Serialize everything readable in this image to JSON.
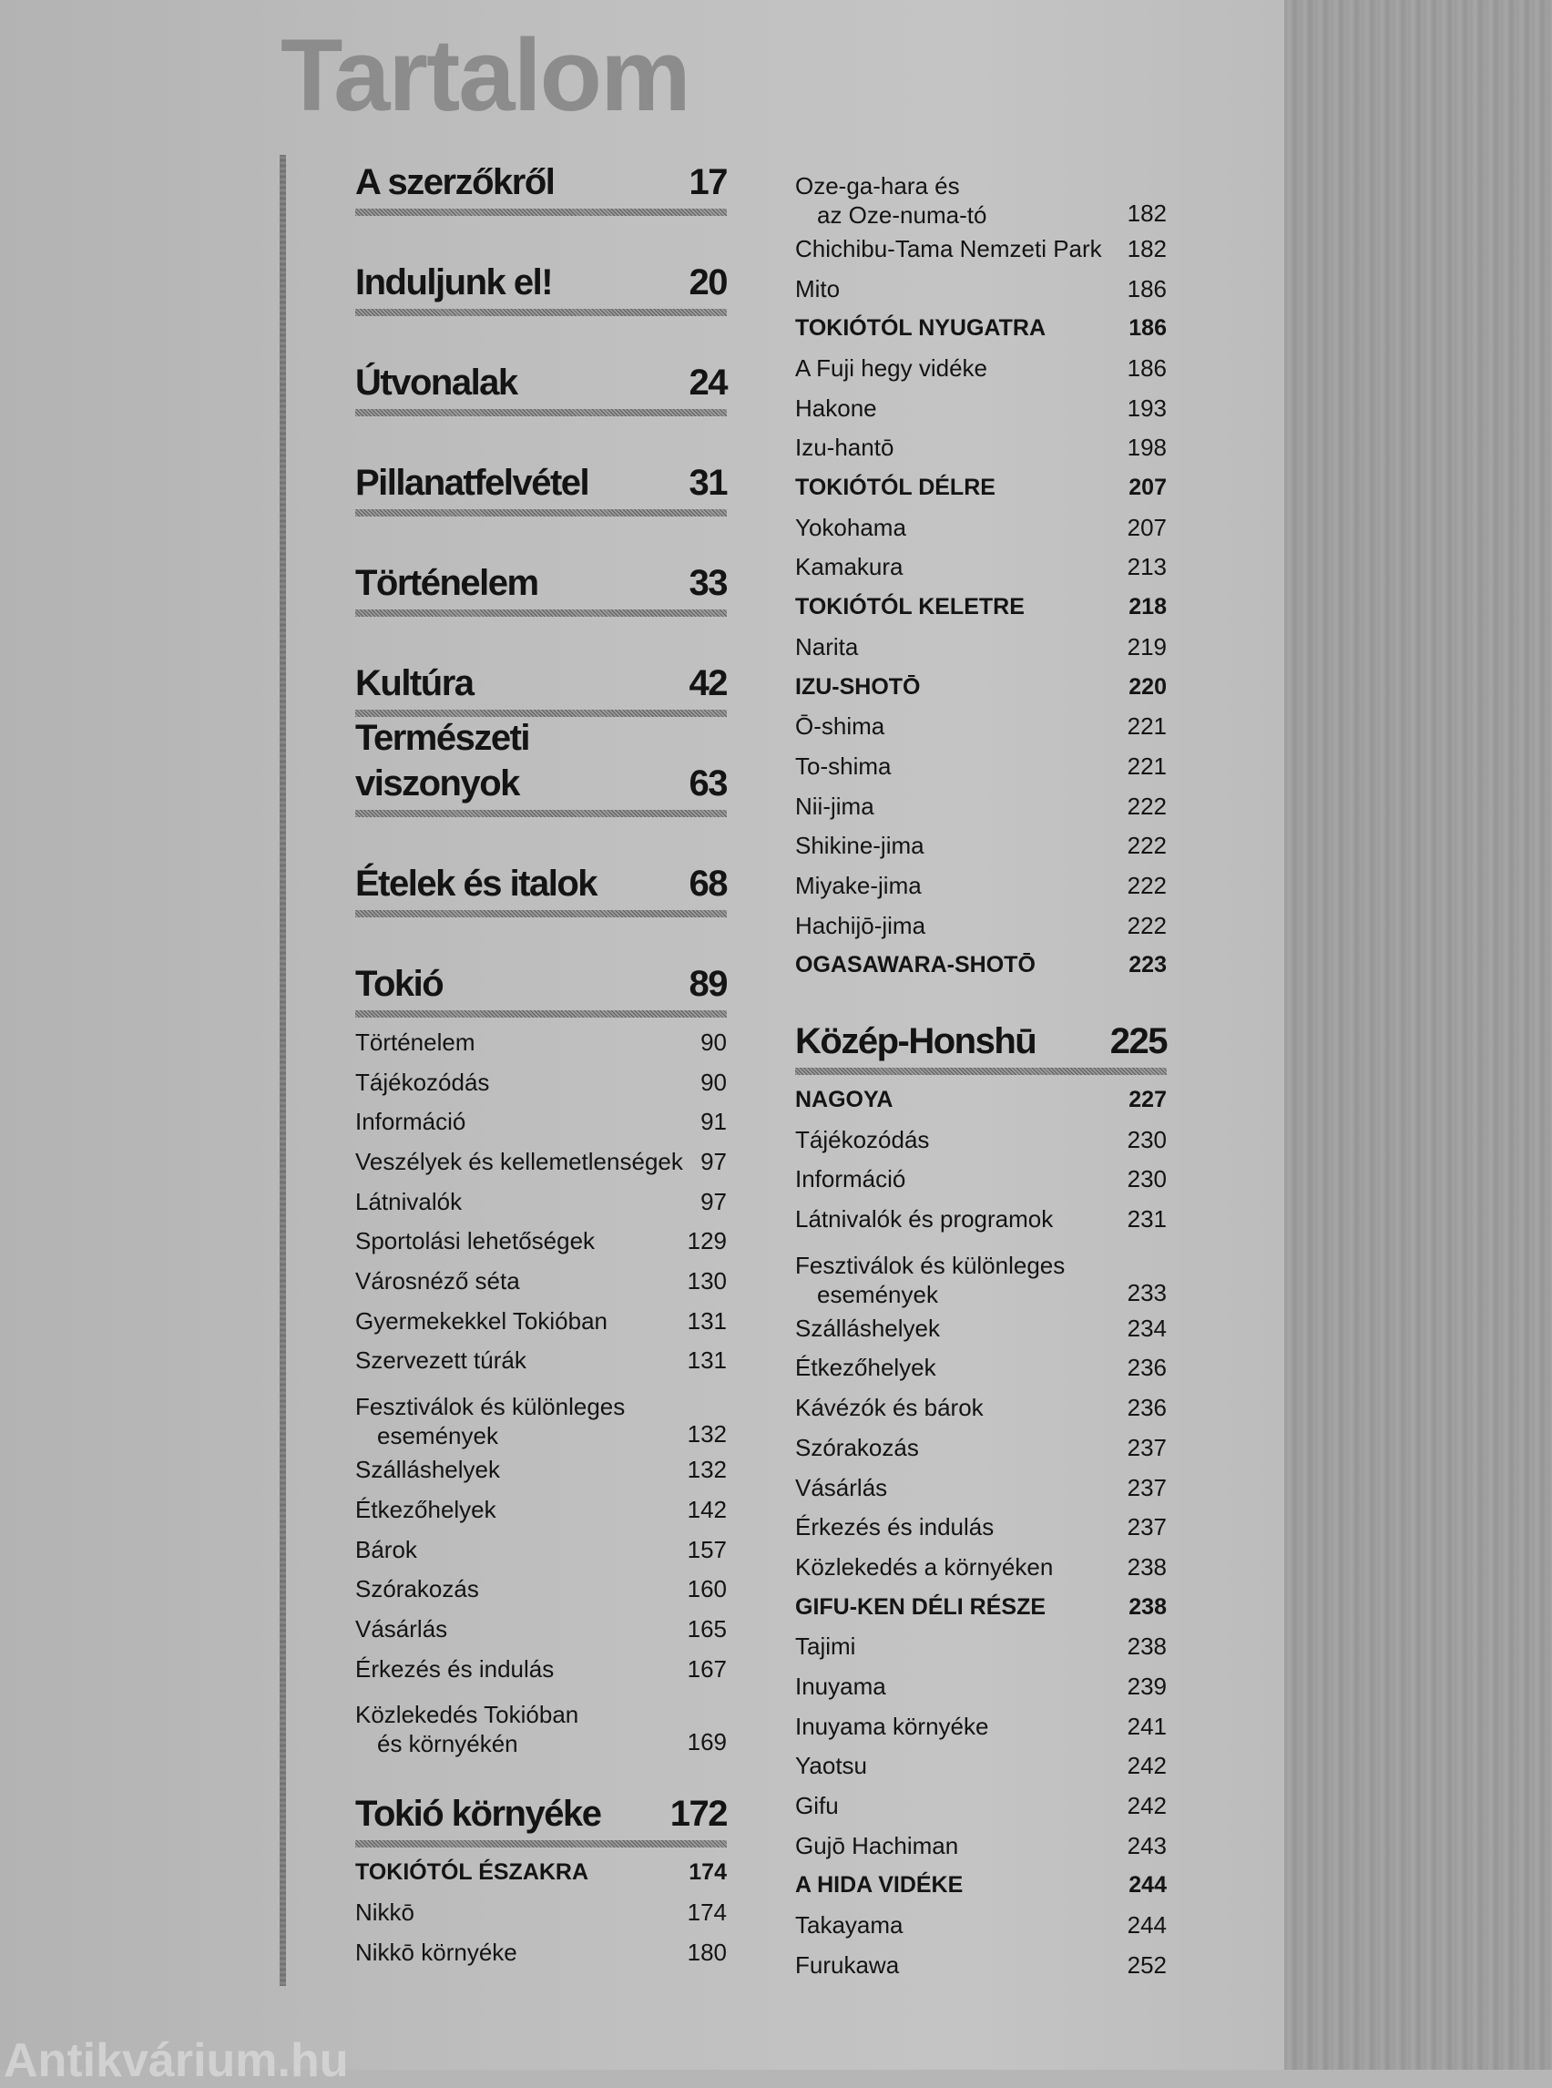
{
  "title": "Tartalom",
  "watermark": "Antikvárium.hu",
  "left": {
    "entries": [
      {
        "type": "chapter",
        "label": "A szerzőkről",
        "page": "17"
      },
      {
        "type": "chapter",
        "label": "Induljunk el!",
        "page": "20"
      },
      {
        "type": "chapter",
        "label": "Útvonalak",
        "page": "24"
      },
      {
        "type": "chapter",
        "label": "Pillanatfelvétel",
        "page": "31"
      },
      {
        "type": "chapter",
        "label": "Történelem",
        "page": "33"
      },
      {
        "type": "chapter",
        "label": "Kultúra",
        "page": "42"
      },
      {
        "type": "chapter",
        "label": "Természeti viszonyok",
        "page": "63"
      },
      {
        "type": "chapter",
        "label": "Ételek és italok",
        "page": "68"
      },
      {
        "type": "chapter",
        "label": "Tokió",
        "page": "89"
      },
      {
        "type": "item",
        "label": "Történelem",
        "page": "90"
      },
      {
        "type": "item",
        "label": "Tájékozódás",
        "page": "90"
      },
      {
        "type": "item",
        "label": "Információ",
        "page": "91"
      },
      {
        "type": "item",
        "label": "Veszélyek és kellemetlenségek",
        "page": "97"
      },
      {
        "type": "item",
        "label": "Látnivalók",
        "page": "97"
      },
      {
        "type": "item",
        "label": "Sportolási lehetőségek",
        "page": "129"
      },
      {
        "type": "item",
        "label": "Városnéző séta",
        "page": "130"
      },
      {
        "type": "item",
        "label": "Gyermekekkel Tokióban",
        "page": "131"
      },
      {
        "type": "item",
        "label": "Szervezett túrák",
        "page": "131"
      },
      {
        "type": "item",
        "label": "Fesztiválok és különleges",
        "label2": "események",
        "page": "132"
      },
      {
        "type": "item",
        "label": "Szálláshelyek",
        "page": "132"
      },
      {
        "type": "item",
        "label": "Étkezőhelyek",
        "page": "142"
      },
      {
        "type": "item",
        "label": "Bárok",
        "page": "157"
      },
      {
        "type": "item",
        "label": "Szórakozás",
        "page": "160"
      },
      {
        "type": "item",
        "label": "Vásárlás",
        "page": "165"
      },
      {
        "type": "item",
        "label": "Érkezés és indulás",
        "page": "167"
      },
      {
        "type": "item",
        "label": "Közlekedés Tokióban",
        "label2": "és környékén",
        "page": "169"
      },
      {
        "type": "chapter",
        "label": "Tokió környéke",
        "page": "172"
      },
      {
        "type": "section",
        "label": "TOKIÓTÓL ÉSZAKRA",
        "page": "174"
      },
      {
        "type": "item",
        "label": "Nikkō",
        "page": "174"
      },
      {
        "type": "item",
        "label": "Nikkō környéke",
        "page": "180"
      }
    ]
  },
  "right": {
    "entries": [
      {
        "type": "item",
        "label": "Oze-ga-hara és",
        "label2": "az Oze-numa-tó",
        "page": "182"
      },
      {
        "type": "item",
        "label": "Chichibu-Tama Nemzeti Park",
        "page": "182"
      },
      {
        "type": "item",
        "label": "Mito",
        "page": "186"
      },
      {
        "type": "section",
        "label": "TOKIÓTÓL NYUGATRA",
        "page": "186"
      },
      {
        "type": "item",
        "label": "A Fuji hegy vidéke",
        "page": "186"
      },
      {
        "type": "item",
        "label": "Hakone",
        "page": "193"
      },
      {
        "type": "item",
        "label": "Izu-hantō",
        "page": "198"
      },
      {
        "type": "section",
        "label": "TOKIÓTÓL DÉLRE",
        "page": "207"
      },
      {
        "type": "item",
        "label": "Yokohama",
        "page": "207"
      },
      {
        "type": "item",
        "label": "Kamakura",
        "page": "213"
      },
      {
        "type": "section",
        "label": "TOKIÓTÓL KELETRE",
        "page": "218"
      },
      {
        "type": "item",
        "label": "Narita",
        "page": "219"
      },
      {
        "type": "section",
        "label": "IZU-SHOTŌ",
        "page": "220"
      },
      {
        "type": "item",
        "label": "Ō-shima",
        "page": "221"
      },
      {
        "type": "item",
        "label": "To-shima",
        "page": "221"
      },
      {
        "type": "item",
        "label": "Nii-jima",
        "page": "222"
      },
      {
        "type": "item",
        "label": "Shikine-jima",
        "page": "222"
      },
      {
        "type": "item",
        "label": "Miyake-jima",
        "page": "222"
      },
      {
        "type": "item",
        "label": "Hachijō-jima",
        "page": "222"
      },
      {
        "type": "section",
        "label": "OGASAWARA-SHOTŌ",
        "page": "223"
      },
      {
        "type": "chapter",
        "label": "Közép-Honshū",
        "page": "225"
      },
      {
        "type": "section",
        "label": "NAGOYA",
        "page": "227"
      },
      {
        "type": "item",
        "label": "Tájékozódás",
        "page": "230"
      },
      {
        "type": "item",
        "label": "Információ",
        "page": "230"
      },
      {
        "type": "item",
        "label": "Látnivalók és programok",
        "page": "231"
      },
      {
        "type": "item",
        "label": "Fesztiválok és különleges",
        "label2": "események",
        "page": "233"
      },
      {
        "type": "item",
        "label": "Szálláshelyek",
        "page": "234"
      },
      {
        "type": "item",
        "label": "Étkezőhelyek",
        "page": "236"
      },
      {
        "type": "item",
        "label": "Kávézók és bárok",
        "page": "236"
      },
      {
        "type": "item",
        "label": "Szórakozás",
        "page": "237"
      },
      {
        "type": "item",
        "label": "Vásárlás",
        "page": "237"
      },
      {
        "type": "item",
        "label": "Érkezés és indulás",
        "page": "237"
      },
      {
        "type": "item",
        "label": "Közlekedés a környéken",
        "page": "238"
      },
      {
        "type": "section",
        "label": "GIFU-KEN DÉLI RÉSZE",
        "page": "238"
      },
      {
        "type": "item",
        "label": "Tajimi",
        "page": "238"
      },
      {
        "type": "item",
        "label": "Inuyama",
        "page": "239"
      },
      {
        "type": "item",
        "label": "Inuyama környéke",
        "page": "241"
      },
      {
        "type": "item",
        "label": "Yaotsu",
        "page": "242"
      },
      {
        "type": "item",
        "label": "Gifu",
        "page": "242"
      },
      {
        "type": "item",
        "label": "Gujō Hachiman",
        "page": "243"
      },
      {
        "type": "section",
        "label": "A HIDA VIDÉKE",
        "page": "244"
      },
      {
        "type": "item",
        "label": "Takayama",
        "page": "244"
      },
      {
        "type": "item",
        "label": "Furukawa",
        "page": "252"
      }
    ]
  }
}
